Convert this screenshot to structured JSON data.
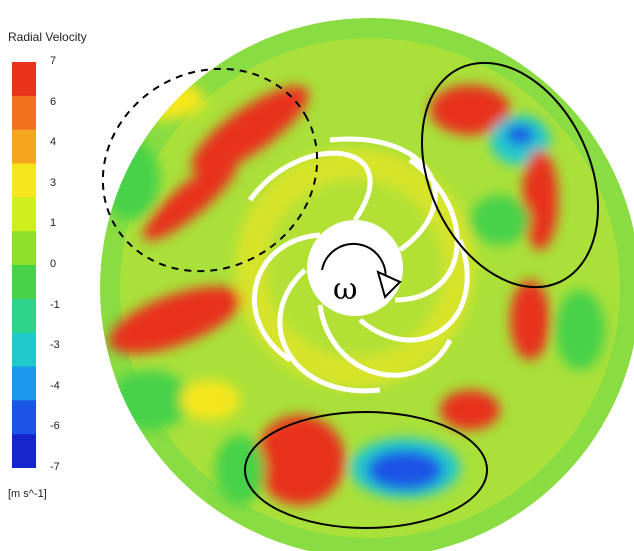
{
  "legend": {
    "title": "Radial Velocity",
    "unit": "[m s^-1]",
    "ticks": [
      "7",
      "6",
      "4",
      "3",
      "1",
      "0",
      "-1",
      "-3",
      "-4",
      "-6",
      "-7"
    ],
    "colors": [
      "#e8321a",
      "#f3701e",
      "#f2a71e",
      "#f6e61e",
      "#cfee1e",
      "#8fe02c",
      "#47d24a",
      "#30d48a",
      "#20c9cc",
      "#1b99ee",
      "#1a55e6",
      "#1524cc"
    ]
  },
  "rotation_symbol": "ω"
}
